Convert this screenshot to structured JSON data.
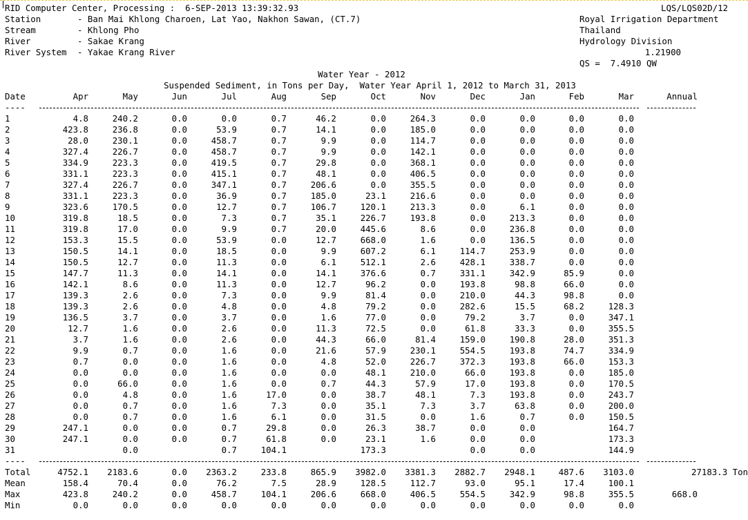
{
  "header": {
    "processing": "RID Computer Center, Processing :  6-SEP-2013 13:39:32.93",
    "report_id": "LQS/LQS02D/12",
    "station_label": "Station",
    "station_value": "- Ban Mai Khlong Charoen, Lat Yao, Nakhon Sawan, (CT.7)",
    "stream_label": "Stream",
    "stream_value": "- Khlong Pho",
    "river_label": "River",
    "river_value": "- Sakae Krang",
    "system_label": "River System",
    "system_value": "- Yakae Krang River",
    "org1": "Royal Irrigation Department",
    "org2": "Thailand",
    "org3": "Hydrology Division",
    "coef": "1.21900",
    "formula": "QS =  7.4910 QW",
    "water_year": "Water Year - 2012",
    "subtitle": "Suspended Sediment, in Tons per Day,  Water Year April 1, 2012 to March 31, 2013"
  },
  "columns": [
    "Date",
    "Apr",
    "May",
    "Jun",
    "Jul",
    "Aug",
    "Sep",
    "Oct",
    "Nov",
    "Dec",
    "Jan",
    "Feb",
    "Mar",
    "Annual"
  ],
  "rows": [
    [
      "1",
      "4.8",
      "240.2",
      "0.0",
      "0.0",
      "0.7",
      "46.2",
      "0.0",
      "264.3",
      "0.0",
      "0.0",
      "0.0",
      "0.0"
    ],
    [
      "2",
      "423.8",
      "236.8",
      "0.0",
      "53.9",
      "0.7",
      "14.1",
      "0.0",
      "185.0",
      "0.0",
      "0.0",
      "0.0",
      "0.0"
    ],
    [
      "3",
      "28.0",
      "230.1",
      "0.0",
      "458.7",
      "0.7",
      "9.9",
      "0.0",
      "114.7",
      "0.0",
      "0.0",
      "0.0",
      "0.0"
    ],
    [
      "4",
      "327.4",
      "226.7",
      "0.0",
      "458.7",
      "0.7",
      "9.9",
      "0.0",
      "142.1",
      "0.0",
      "0.0",
      "0.0",
      "0.0"
    ],
    [
      "5",
      "334.9",
      "223.3",
      "0.0",
      "419.5",
      "0.7",
      "29.8",
      "0.0",
      "368.1",
      "0.0",
      "0.0",
      "0.0",
      "0.0"
    ],
    [
      "6",
      "331.1",
      "223.3",
      "0.0",
      "415.1",
      "0.7",
      "48.1",
      "0.0",
      "406.5",
      "0.0",
      "0.0",
      "0.0",
      "0.0"
    ],
    [
      "7",
      "327.4",
      "226.7",
      "0.0",
      "347.1",
      "0.7",
      "206.6",
      "0.0",
      "355.5",
      "0.0",
      "0.0",
      "0.0",
      "0.0"
    ],
    [
      "8",
      "331.1",
      "223.3",
      "0.0",
      "36.9",
      "0.7",
      "185.0",
      "23.1",
      "216.6",
      "0.0",
      "0.0",
      "0.0",
      "0.0"
    ],
    [
      "9",
      "323.6",
      "170.5",
      "0.0",
      "12.7",
      "0.7",
      "106.7",
      "120.1",
      "213.3",
      "0.0",
      "6.1",
      "0.0",
      "0.0"
    ],
    [
      "10",
      "319.8",
      "18.5",
      "0.0",
      "7.3",
      "0.7",
      "35.1",
      "226.7",
      "193.8",
      "0.0",
      "213.3",
      "0.0",
      "0.0"
    ],
    [
      "11",
      "319.8",
      "17.0",
      "0.0",
      "9.9",
      "0.7",
      "20.0",
      "445.6",
      "8.6",
      "0.0",
      "236.8",
      "0.0",
      "0.0"
    ],
    [
      "12",
      "153.3",
      "15.5",
      "0.0",
      "53.9",
      "0.0",
      "12.7",
      "668.0",
      "1.6",
      "0.0",
      "136.5",
      "0.0",
      "0.0"
    ],
    [
      "13",
      "150.5",
      "14.1",
      "0.0",
      "18.5",
      "0.0",
      "9.9",
      "607.2",
      "6.1",
      "114.7",
      "253.9",
      "0.0",
      "0.0"
    ],
    [
      "14",
      "150.5",
      "12.7",
      "0.0",
      "11.3",
      "0.0",
      "6.1",
      "512.1",
      "2.6",
      "428.1",
      "338.7",
      "0.0",
      "0.0"
    ],
    [
      "15",
      "147.7",
      "11.3",
      "0.0",
      "14.1",
      "0.0",
      "14.1",
      "376.6",
      "0.7",
      "331.1",
      "342.9",
      "85.9",
      "0.0"
    ],
    [
      "16",
      "142.1",
      "8.6",
      "0.0",
      "11.3",
      "0.0",
      "12.7",
      "96.2",
      "0.0",
      "193.8",
      "98.8",
      "66.0",
      "0.0"
    ],
    [
      "17",
      "139.3",
      "2.6",
      "0.0",
      "7.3",
      "0.0",
      "9.9",
      "81.4",
      "0.0",
      "210.0",
      "44.3",
      "98.8",
      "0.0"
    ],
    [
      "18",
      "139.3",
      "2.6",
      "0.0",
      "4.8",
      "0.0",
      "4.8",
      "79.2",
      "0.0",
      "282.6",
      "15.5",
      "68.2",
      "128.3"
    ],
    [
      "19",
      "136.5",
      "3.7",
      "0.0",
      "3.7",
      "0.0",
      "1.6",
      "77.0",
      "0.0",
      "79.2",
      "3.7",
      "0.0",
      "347.1"
    ],
    [
      "20",
      "12.7",
      "1.6",
      "0.0",
      "2.6",
      "0.0",
      "11.3",
      "72.5",
      "0.0",
      "61.8",
      "33.3",
      "0.0",
      "355.5"
    ],
    [
      "21",
      "3.7",
      "1.6",
      "0.0",
      "2.6",
      "0.0",
      "44.3",
      "66.0",
      "81.4",
      "159.0",
      "190.8",
      "28.0",
      "351.3"
    ],
    [
      "22",
      "9.9",
      "0.7",
      "0.0",
      "1.6",
      "0.0",
      "21.6",
      "57.9",
      "230.1",
      "554.5",
      "193.8",
      "74.7",
      "334.9"
    ],
    [
      "23",
      "0.7",
      "0.0",
      "0.0",
      "1.6",
      "0.0",
      "4.8",
      "52.0",
      "226.7",
      "372.3",
      "193.8",
      "66.0",
      "153.3"
    ],
    [
      "24",
      "0.0",
      "0.0",
      "0.0",
      "1.6",
      "0.0",
      "0.0",
      "48.1",
      "210.0",
      "66.0",
      "193.8",
      "0.0",
      "185.0"
    ],
    [
      "25",
      "0.0",
      "66.0",
      "0.0",
      "1.6",
      "0.0",
      "0.7",
      "44.3",
      "57.9",
      "17.0",
      "193.8",
      "0.0",
      "170.5"
    ],
    [
      "26",
      "0.0",
      "4.8",
      "0.0",
      "1.6",
      "17.0",
      "0.0",
      "38.7",
      "48.1",
      "7.3",
      "193.8",
      "0.0",
      "243.7"
    ],
    [
      "27",
      "0.0",
      "0.7",
      "0.0",
      "1.6",
      "7.3",
      "0.0",
      "35.1",
      "7.3",
      "3.7",
      "63.8",
      "0.0",
      "200.0"
    ],
    [
      "28",
      "0.0",
      "0.7",
      "0.0",
      "1.6",
      "6.1",
      "0.0",
      "31.5",
      "0.0",
      "1.6",
      "0.7",
      "0.0",
      "150.5"
    ],
    [
      "29",
      "247.1",
      "0.0",
      "0.0",
      "0.7",
      "29.8",
      "0.0",
      "26.3",
      "38.7",
      "0.0",
      "0.0",
      "",
      "164.7"
    ],
    [
      "30",
      "247.1",
      "0.0",
      "0.0",
      "0.7",
      "61.8",
      "0.0",
      "23.1",
      "1.6",
      "0.0",
      "0.0",
      "",
      "173.3"
    ],
    [
      "31",
      "",
      "0.0",
      "",
      "0.7",
      "104.1",
      "",
      "173.3",
      "",
      "0.0",
      "0.0",
      "",
      "144.9"
    ]
  ],
  "summary": [
    [
      "Total",
      "4752.1",
      "2183.6",
      "0.0",
      "2363.2",
      "233.8",
      "865.9",
      "3982.0",
      "3381.3",
      "2882.7",
      "2948.1",
      "487.6",
      "3103.0",
      "27183.3 Ton"
    ],
    [
      "Mean",
      "158.4",
      "70.4",
      "0.0",
      "76.2",
      "7.5",
      "28.9",
      "128.5",
      "112.7",
      "93.0",
      "95.1",
      "17.4",
      "100.1",
      ""
    ],
    [
      "Max",
      "423.8",
      "240.2",
      "0.0",
      "458.7",
      "104.1",
      "206.6",
      "668.0",
      "406.5",
      "554.5",
      "342.9",
      "98.8",
      "355.5",
      "668.0"
    ],
    [
      "Min",
      "0.0",
      "0.0",
      "0.0",
      "0.0",
      "0.0",
      "0.0",
      "0.0",
      "0.0",
      "0.0",
      "0.0",
      "0.0",
      "0.0",
      ""
    ]
  ],
  "dash_short": "----"
}
